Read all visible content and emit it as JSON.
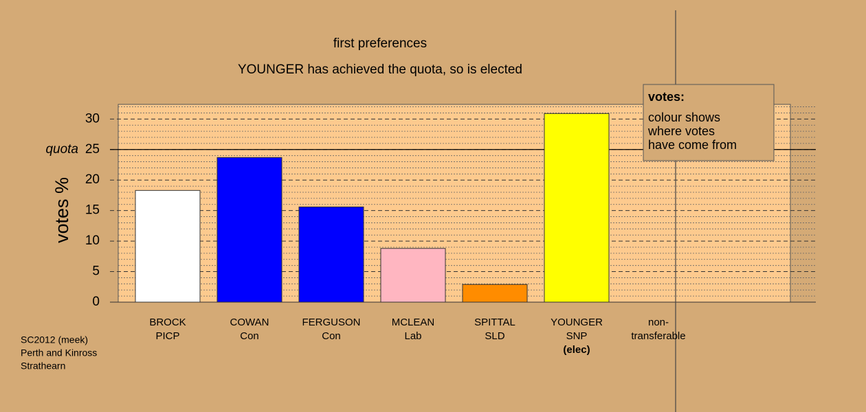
{
  "chart_data": {
    "type": "bar",
    "title": "first preferences",
    "subtitle": "YOUNGER has achieved the quota, so is elected",
    "ylabel": "votes %",
    "categories": [
      [
        "BROCK",
        "PICP"
      ],
      [
        "COWAN",
        "Con"
      ],
      [
        "FERGUSON",
        "Con"
      ],
      [
        "MCLEAN",
        "Lab"
      ],
      [
        "SPITTAL",
        "SLD"
      ],
      [
        "YOUNGER",
        "SNP"
      ],
      [
        "non-",
        "transferable"
      ]
    ],
    "status_labels": [
      null,
      null,
      null,
      null,
      null,
      "(elec)",
      null
    ],
    "values": [
      18.3,
      23.7,
      15.6,
      8.8,
      2.9,
      30.9,
      0
    ],
    "colors": [
      "#ffffff",
      "#0000ff",
      "#0000ff",
      "#ffb6c1",
      "#ff8c00",
      "#ffff00",
      "#ffffff"
    ],
    "ylim": [
      0,
      32.4
    ],
    "yticks": [
      0,
      5,
      10,
      15,
      20,
      25,
      30
    ],
    "minor_yticks": [
      1,
      2,
      3,
      4,
      6,
      7,
      8,
      9,
      11,
      12,
      13,
      14,
      16,
      17,
      18,
      19,
      21,
      22,
      23,
      24,
      26,
      27,
      28,
      29,
      31,
      32
    ],
    "grid": true,
    "quota": {
      "value": 25,
      "label": "quota"
    },
    "legend_box": {
      "title": "votes:",
      "lines": [
        "colour shows",
        "where votes",
        "have come from"
      ]
    },
    "footer": [
      "SC2012 (meek)",
      "Perth and Kinross",
      "Strathearn"
    ]
  }
}
